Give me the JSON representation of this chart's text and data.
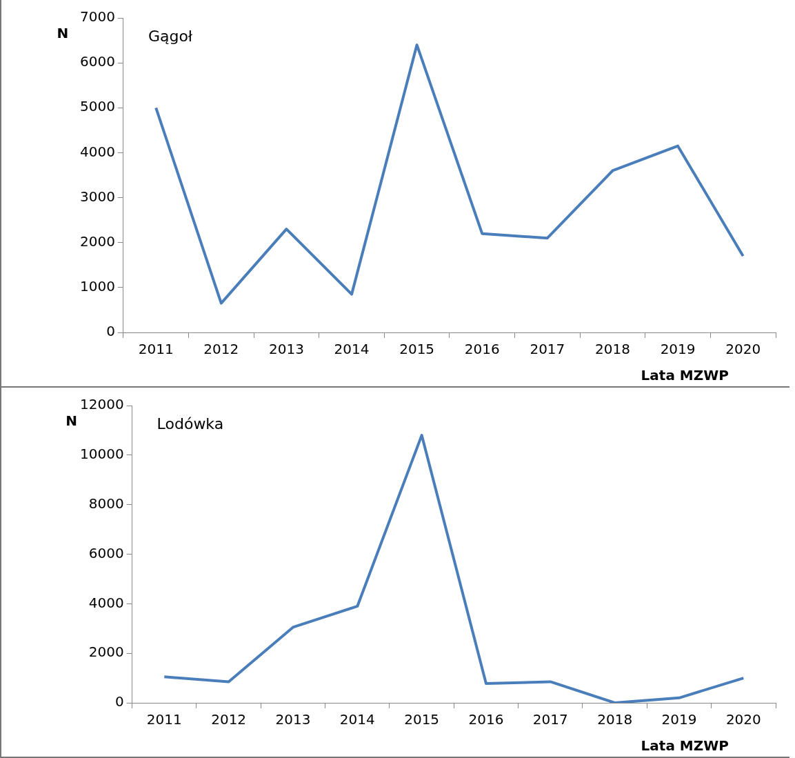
{
  "chart_data": [
    {
      "type": "line",
      "title": "Gągoł",
      "xlabel": "Lata MZWP",
      "ylabel": "N",
      "categories": [
        "2011",
        "2012",
        "2013",
        "2014",
        "2015",
        "2016",
        "2017",
        "2018",
        "2019",
        "2020"
      ],
      "series": [
        {
          "color": "#4a7ebb",
          "values": [
            5000,
            650,
            2300,
            850,
            6400,
            2200,
            2100,
            3600,
            4150,
            1700
          ]
        }
      ],
      "ylim": [
        0,
        7000
      ],
      "yticks": [
        0,
        1000,
        2000,
        3000,
        4000,
        5000,
        6000,
        7000
      ],
      "grid": false,
      "legend": false,
      "marker": "none",
      "line_style": "solid"
    },
    {
      "type": "line",
      "title": "Lodówka",
      "xlabel": "Lata MZWP",
      "ylabel": "N",
      "categories": [
        "2011",
        "2012",
        "2013",
        "2014",
        "2015",
        "2016",
        "2017",
        "2018",
        "2019",
        "2020"
      ],
      "series": [
        {
          "color": "#4a7ebb",
          "values": [
            1050,
            850,
            3050,
            3900,
            10800,
            780,
            850,
            0,
            200,
            1000
          ]
        }
      ],
      "ylim": [
        0,
        12000
      ],
      "yticks": [
        0,
        2000,
        4000,
        6000,
        8000,
        10000,
        12000
      ],
      "grid": false,
      "legend": false,
      "marker": "none",
      "line_style": "solid"
    }
  ]
}
